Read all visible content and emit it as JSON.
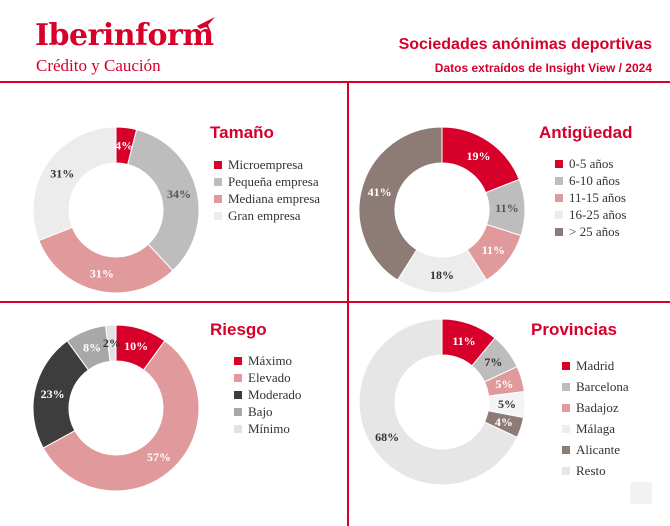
{
  "header": {
    "logo_text": "Iberinform",
    "tagline": "Crédito y Caución",
    "title": "Sociedades anónimas deportivas",
    "subtitle": "Datos extraídos de Insight View / 2024"
  },
  "colors": {
    "brand": "#d6002a",
    "grid_line": "#d6002a",
    "label_dark": "#333333",
    "label_light": "#ffffff"
  },
  "panels": {
    "tamano": {
      "title": "Tamaño"
    },
    "antiguedad": {
      "title": "Antigüedad"
    },
    "riesgo": {
      "title": "Riesgo"
    },
    "provincias": {
      "title": "Provincias"
    }
  },
  "chart_data": [
    {
      "id": "tamano",
      "type": "pie",
      "title": "Tamaño",
      "categories": [
        "Microempresa",
        "Pequeña empresa",
        "Mediana empresa",
        "Gran empresa"
      ],
      "values": [
        4,
        34,
        31,
        31
      ],
      "labels": [
        "4%",
        "34%",
        "31%",
        "31%"
      ],
      "colors": [
        "#d6002a",
        "#bdbdbd",
        "#e09a9c",
        "#ececec"
      ],
      "label_colors": [
        "#ffffff",
        "#555555",
        "#ffffff",
        "#333333"
      ],
      "legend": "right"
    },
    {
      "id": "antiguedad",
      "type": "pie",
      "title": "Antigüedad",
      "categories": [
        "0-5 años",
        "6-10 años",
        "11-15 años",
        "16-25 años",
        "> 25 años"
      ],
      "values": [
        19,
        11,
        11,
        18,
        41
      ],
      "labels": [
        "19%",
        "11%",
        "11%",
        "18%",
        "41%"
      ],
      "colors": [
        "#d6002a",
        "#bdbdbd",
        "#e09a9c",
        "#ececec",
        "#8d7b76"
      ],
      "label_colors": [
        "#ffffff",
        "#555555",
        "#ffffff",
        "#333333",
        "#ffffff"
      ],
      "legend": "right"
    },
    {
      "id": "riesgo",
      "type": "pie",
      "title": "Riesgo",
      "categories": [
        "Máximo",
        "Elevado",
        "Moderado",
        "Bajo",
        "Mínimo"
      ],
      "values": [
        10,
        57,
        23,
        8,
        2
      ],
      "labels": [
        "10%",
        "57%",
        "23%",
        "8%",
        "2%"
      ],
      "colors": [
        "#d6002a",
        "#e09a9c",
        "#3d3d3d",
        "#a8a8a8",
        "#e2e2e2"
      ],
      "label_colors": [
        "#ffffff",
        "#ffffff",
        "#ffffff",
        "#ffffff",
        "#333333"
      ],
      "legend": "right"
    },
    {
      "id": "provincias",
      "type": "pie",
      "title": "Provincias",
      "categories": [
        "Madrid",
        "Barcelona",
        "Badajoz",
        "Málaga",
        "Alicante",
        "Resto"
      ],
      "values": [
        11,
        7,
        5,
        5,
        4,
        68
      ],
      "labels": [
        "11%",
        "7%",
        "5%",
        "5%",
        "4%",
        "68%"
      ],
      "colors": [
        "#d6002a",
        "#bdbdbd",
        "#e09a9c",
        "#f4f4f4",
        "#8d7b76",
        "#e6e6e6"
      ],
      "label_colors": [
        "#ffffff",
        "#333333",
        "#ffffff",
        "#333333",
        "#ffffff",
        "#333333"
      ],
      "legend": "right"
    }
  ]
}
